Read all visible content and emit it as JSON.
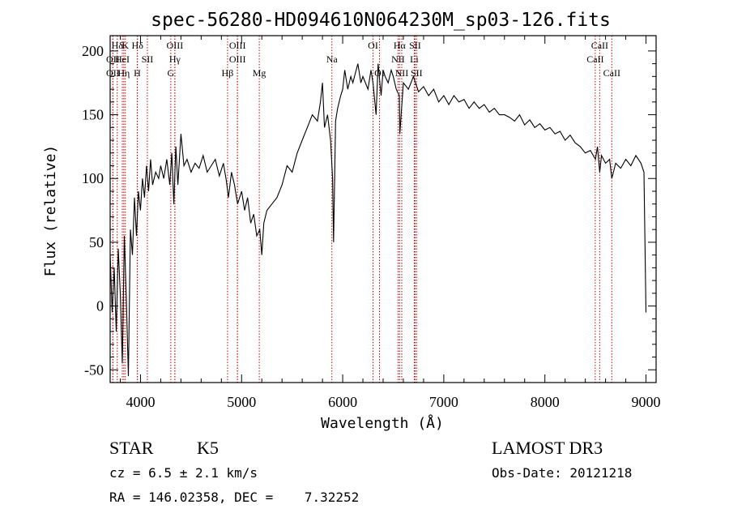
{
  "chart_data": {
    "type": "line",
    "title": "spec-56280-HD094610N064230M_sp03-126.fits",
    "xlabel": "Wavelength (Å)",
    "ylabel": "Flux (relative)",
    "xlim": [
      3700,
      9100
    ],
    "ylim": [
      -60,
      212
    ],
    "xticks": [
      4000,
      5000,
      6000,
      7000,
      8000,
      9000
    ],
    "yticks": [
      -50,
      0,
      50,
      100,
      150,
      200
    ],
    "grid": false,
    "line_color": "#000000",
    "marker_color": "#cc0000",
    "series": [
      {
        "values": [
          [
            3700,
            40
          ],
          [
            3720,
            -5
          ],
          [
            3740,
            30
          ],
          [
            3760,
            -20
          ],
          [
            3780,
            45
          ],
          [
            3800,
            10
          ],
          [
            3820,
            -45
          ],
          [
            3840,
            55
          ],
          [
            3860,
            5
          ],
          [
            3880,
            -55
          ],
          [
            3900,
            60
          ],
          [
            3920,
            40
          ],
          [
            3940,
            85
          ],
          [
            3960,
            55
          ],
          [
            3980,
            90
          ],
          [
            4000,
            75
          ],
          [
            4020,
            100
          ],
          [
            4040,
            85
          ],
          [
            4060,
            110
          ],
          [
            4080,
            90
          ],
          [
            4100,
            115
          ],
          [
            4120,
            95
          ],
          [
            4150,
            105
          ],
          [
            4180,
            100
          ],
          [
            4200,
            110
          ],
          [
            4230,
            100
          ],
          [
            4260,
            115
          ],
          [
            4290,
            95
          ],
          [
            4310,
            120
          ],
          [
            4330,
            80
          ],
          [
            4350,
            125
          ],
          [
            4370,
            95
          ],
          [
            4400,
            135
          ],
          [
            4430,
            110
          ],
          [
            4460,
            115
          ],
          [
            4500,
            105
          ],
          [
            4540,
            112
          ],
          [
            4580,
            108
          ],
          [
            4620,
            118
          ],
          [
            4660,
            105
          ],
          [
            4700,
            110
          ],
          [
            4740,
            115
          ],
          [
            4780,
            102
          ],
          [
            4820,
            112
          ],
          [
            4850,
            98
          ],
          [
            4870,
            85
          ],
          [
            4900,
            105
          ],
          [
            4930,
            95
          ],
          [
            4960,
            80
          ],
          [
            5000,
            90
          ],
          [
            5030,
            75
          ],
          [
            5060,
            85
          ],
          [
            5090,
            65
          ],
          [
            5120,
            72
          ],
          [
            5150,
            55
          ],
          [
            5180,
            60
          ],
          [
            5200,
            40
          ],
          [
            5220,
            65
          ],
          [
            5250,
            75
          ],
          [
            5300,
            80
          ],
          [
            5350,
            85
          ],
          [
            5400,
            95
          ],
          [
            5450,
            110
          ],
          [
            5500,
            105
          ],
          [
            5550,
            120
          ],
          [
            5600,
            130
          ],
          [
            5650,
            140
          ],
          [
            5700,
            150
          ],
          [
            5750,
            145
          ],
          [
            5780,
            160
          ],
          [
            5800,
            175
          ],
          [
            5820,
            140
          ],
          [
            5850,
            150
          ],
          [
            5880,
            130
          ],
          [
            5900,
            100
          ],
          [
            5910,
            50
          ],
          [
            5930,
            145
          ],
          [
            5950,
            155
          ],
          [
            5980,
            165
          ],
          [
            6000,
            170
          ],
          [
            6020,
            185
          ],
          [
            6050,
            170
          ],
          [
            6080,
            180
          ],
          [
            6100,
            175
          ],
          [
            6150,
            190
          ],
          [
            6180,
            175
          ],
          [
            6200,
            180
          ],
          [
            6250,
            170
          ],
          [
            6280,
            185
          ],
          [
            6300,
            175
          ],
          [
            6330,
            150
          ],
          [
            6350,
            190
          ],
          [
            6380,
            165
          ],
          [
            6400,
            185
          ],
          [
            6420,
            180
          ],
          [
            6450,
            175
          ],
          [
            6480,
            185
          ],
          [
            6500,
            180
          ],
          [
            6530,
            170
          ],
          [
            6560,
            165
          ],
          [
            6565,
            135
          ],
          [
            6600,
            175
          ],
          [
            6650,
            170
          ],
          [
            6700,
            180
          ],
          [
            6750,
            168
          ],
          [
            6800,
            172
          ],
          [
            6850,
            165
          ],
          [
            6900,
            170
          ],
          [
            6950,
            160
          ],
          [
            7000,
            165
          ],
          [
            7050,
            158
          ],
          [
            7100,
            165
          ],
          [
            7150,
            160
          ],
          [
            7200,
            162
          ],
          [
            7250,
            155
          ],
          [
            7300,
            160
          ],
          [
            7350,
            155
          ],
          [
            7400,
            158
          ],
          [
            7450,
            152
          ],
          [
            7500,
            155
          ],
          [
            7550,
            150
          ],
          [
            7600,
            150
          ],
          [
            7650,
            148
          ],
          [
            7700,
            145
          ],
          [
            7750,
            150
          ],
          [
            7800,
            142
          ],
          [
            7850,
            146
          ],
          [
            7900,
            140
          ],
          [
            7950,
            143
          ],
          [
            8000,
            138
          ],
          [
            8050,
            140
          ],
          [
            8100,
            135
          ],
          [
            8150,
            137
          ],
          [
            8200,
            130
          ],
          [
            8250,
            134
          ],
          [
            8300,
            128
          ],
          [
            8350,
            125
          ],
          [
            8400,
            120
          ],
          [
            8450,
            122
          ],
          [
            8500,
            115
          ],
          [
            8520,
            125
          ],
          [
            8542,
            105
          ],
          [
            8560,
            118
          ],
          [
            8600,
            112
          ],
          [
            8640,
            115
          ],
          [
            8662,
            100
          ],
          [
            8700,
            112
          ],
          [
            8750,
            108
          ],
          [
            8800,
            115
          ],
          [
            8850,
            110
          ],
          [
            8900,
            118
          ],
          [
            8950,
            112
          ],
          [
            8980,
            105
          ],
          [
            9000,
            -5
          ]
        ]
      }
    ],
    "lines": [
      {
        "label": "Hδ",
        "x": 3770
      },
      {
        "label": "K",
        "x": 3850
      },
      {
        "label": "Hδ",
        "x": 3970
      },
      {
        "label": "OII",
        "x": 3727
      },
      {
        "label": "HeI",
        "x": 3820
      },
      {
        "label": "SII",
        "x": 4068
      },
      {
        "label": "OII",
        "x": 3727
      },
      {
        "label": "Hη",
        "x": 3835
      },
      {
        "label": "H",
        "x": 3968
      },
      {
        "label": "OIII",
        "x": 4340
      },
      {
        "label": "Hγ",
        "x": 4340
      },
      {
        "label": "G",
        "x": 4300
      },
      {
        "label": "OIII",
        "x": 4959
      },
      {
        "label": "OIII",
        "x": 4959
      },
      {
        "label": "Hβ",
        "x": 4861
      },
      {
        "label": "Mg",
        "x": 5175
      },
      {
        "label": "Na",
        "x": 5893
      },
      {
        "label": "OI",
        "x": 6300
      },
      {
        "label": "OI",
        "x": 6364
      },
      {
        "label": "Hα",
        "x": 6563
      },
      {
        "label": "SII",
        "x": 6716
      },
      {
        "label": "NII",
        "x": 6548
      },
      {
        "label": "Li",
        "x": 6708
      },
      {
        "label": "NII",
        "x": 6584
      },
      {
        "label": "SII",
        "x": 6731
      },
      {
        "label": "CaII",
        "x": 8542
      },
      {
        "label": "CaII",
        "x": 8498
      },
      {
        "label": "CaII",
        "x": 8662
      }
    ]
  },
  "info": {
    "object_class": "STAR",
    "subclass": "K5",
    "survey": "LAMOST DR3",
    "cz": "cz = 6.5 ± 2.1 km/s",
    "obs_date": "Obs-Date: 20121218",
    "radec": "RA = 146.02358, DEC =    7.32252"
  }
}
